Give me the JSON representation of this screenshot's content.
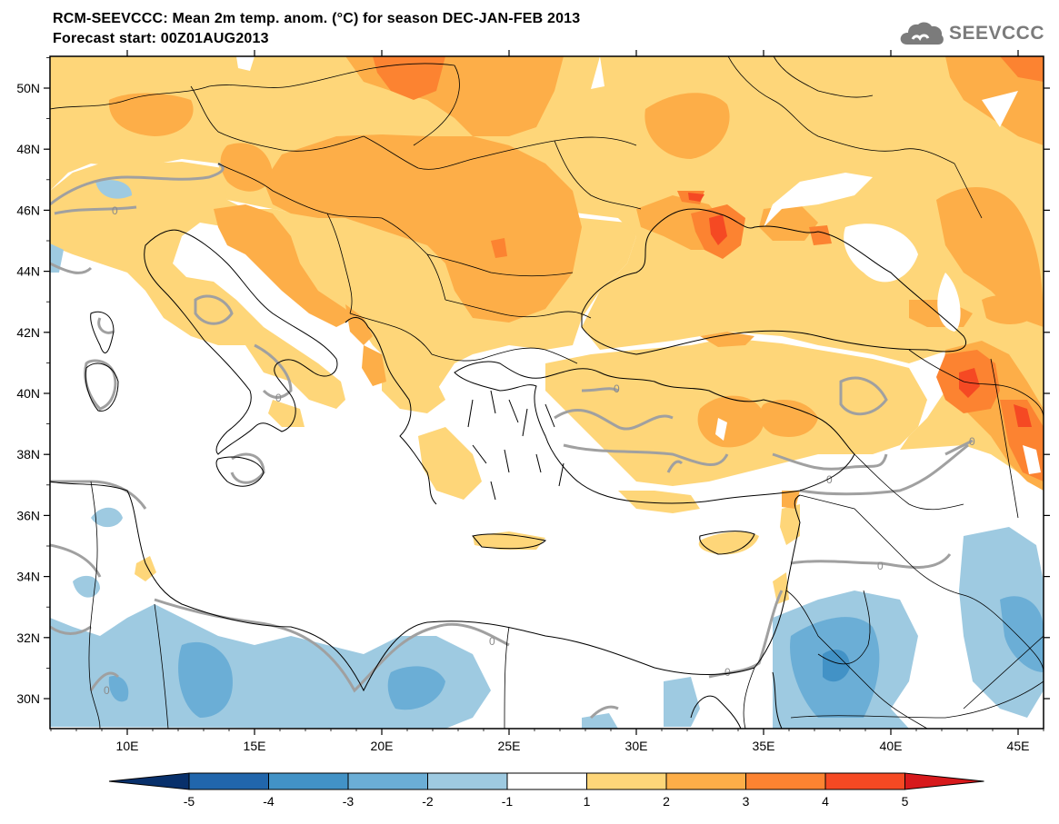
{
  "header": {
    "title_line1": "RCM-SEEVCCC: Mean 2m temp. anom. (°C) for season DEC-JAN-FEB 2013",
    "title_line2": "Forecast start: 00Z01AUG2013"
  },
  "logo": {
    "text": "SEEVCCC",
    "icon": "cloud-logo-icon"
  },
  "map": {
    "lon_ticks": [
      "10E",
      "15E",
      "20E",
      "25E",
      "30E",
      "35E",
      "40E",
      "45E"
    ],
    "lat_ticks": [
      "30N",
      "32N",
      "34N",
      "36N",
      "38N",
      "40N",
      "42N",
      "44N",
      "46N",
      "48N",
      "50N"
    ],
    "contour_label": "0",
    "colors": {
      "land_neutral": "#ffffff",
      "warm_1_2": "#fed679",
      "warm_2_3": "#fdae48",
      "warm_3_4": "#fc8331",
      "warm_4_5": "#f54923",
      "cold_m1_m2": "#9ecae1",
      "cold_m2_m3": "#6baed6",
      "cold_m3_m4": "#4292c6",
      "contour_zero": "#a0a0a0",
      "borders": "#000000"
    }
  },
  "colorbar": {
    "labels": [
      "-5",
      "-4",
      "-3",
      "-2",
      "-1",
      "1",
      "2",
      "3",
      "4",
      "5"
    ],
    "colors": [
      "#08306b",
      "#2166ac",
      "#4292c6",
      "#6baed6",
      "#9ecae1",
      "#ffffff",
      "#fed679",
      "#fdae48",
      "#fc8331",
      "#f54923",
      "#d7191c"
    ]
  }
}
